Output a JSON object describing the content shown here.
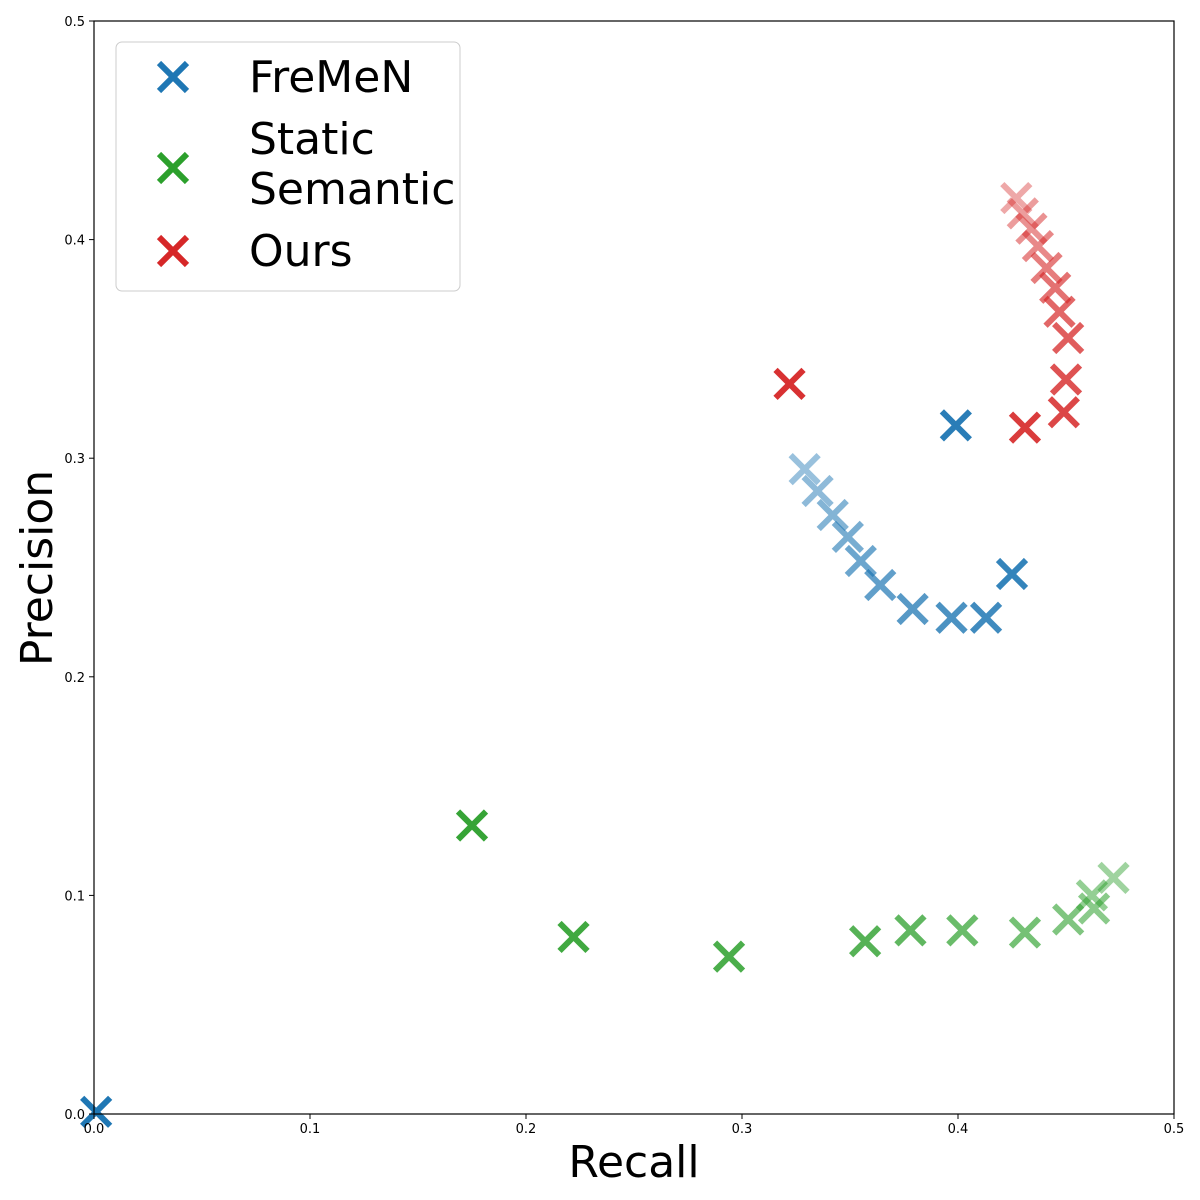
{
  "chart_data": {
    "type": "scatter",
    "title": "",
    "xlabel": "Recall",
    "ylabel": "Precision",
    "xlim": [
      0,
      0.5
    ],
    "ylim": [
      0,
      0.5
    ],
    "xticks": [
      "0.0",
      "0.1",
      "0.2",
      "0.3",
      "0.4",
      "0.5"
    ],
    "yticks": [
      "0.0",
      "0.1",
      "0.2",
      "0.3",
      "0.4",
      "0.5"
    ],
    "grid": false,
    "legend_position": "top-left",
    "marker": "x",
    "series": [
      {
        "name": "FreMeN",
        "color": "#1f77b4",
        "points": [
          {
            "x": 0.001,
            "y": 0.001,
            "alpha": 1.0
          },
          {
            "x": 0.399,
            "y": 0.315,
            "alpha": 0.95
          },
          {
            "x": 0.425,
            "y": 0.247,
            "alpha": 0.9
          },
          {
            "x": 0.413,
            "y": 0.227,
            "alpha": 0.85
          },
          {
            "x": 0.397,
            "y": 0.227,
            "alpha": 0.8
          },
          {
            "x": 0.379,
            "y": 0.231,
            "alpha": 0.75
          },
          {
            "x": 0.364,
            "y": 0.242,
            "alpha": 0.7
          },
          {
            "x": 0.355,
            "y": 0.253,
            "alpha": 0.65
          },
          {
            "x": 0.349,
            "y": 0.264,
            "alpha": 0.6
          },
          {
            "x": 0.342,
            "y": 0.274,
            "alpha": 0.55
          },
          {
            "x": 0.335,
            "y": 0.285,
            "alpha": 0.5
          },
          {
            "x": 0.329,
            "y": 0.295,
            "alpha": 0.45
          }
        ]
      },
      {
        "name": "Static\nSemantic",
        "color": "#2ca02c",
        "points": [
          {
            "x": 0.175,
            "y": 0.132,
            "alpha": 0.95
          },
          {
            "x": 0.222,
            "y": 0.081,
            "alpha": 0.9
          },
          {
            "x": 0.294,
            "y": 0.072,
            "alpha": 0.85
          },
          {
            "x": 0.357,
            "y": 0.079,
            "alpha": 0.8
          },
          {
            "x": 0.378,
            "y": 0.084,
            "alpha": 0.75
          },
          {
            "x": 0.402,
            "y": 0.084,
            "alpha": 0.7
          },
          {
            "x": 0.431,
            "y": 0.083,
            "alpha": 0.65
          },
          {
            "x": 0.451,
            "y": 0.089,
            "alpha": 0.6
          },
          {
            "x": 0.463,
            "y": 0.094,
            "alpha": 0.55
          },
          {
            "x": 0.462,
            "y": 0.1,
            "alpha": 0.5
          },
          {
            "x": 0.472,
            "y": 0.108,
            "alpha": 0.45
          }
        ]
      },
      {
        "name": "Ours",
        "color": "#d62728",
        "points": [
          {
            "x": 0.322,
            "y": 0.334,
            "alpha": 0.95
          },
          {
            "x": 0.431,
            "y": 0.314,
            "alpha": 0.9
          },
          {
            "x": 0.449,
            "y": 0.321,
            "alpha": 0.85
          },
          {
            "x": 0.45,
            "y": 0.336,
            "alpha": 0.8
          },
          {
            "x": 0.451,
            "y": 0.355,
            "alpha": 0.75
          },
          {
            "x": 0.447,
            "y": 0.367,
            "alpha": 0.7
          },
          {
            "x": 0.445,
            "y": 0.378,
            "alpha": 0.65
          },
          {
            "x": 0.441,
            "y": 0.387,
            "alpha": 0.6
          },
          {
            "x": 0.437,
            "y": 0.397,
            "alpha": 0.55
          },
          {
            "x": 0.434,
            "y": 0.405,
            "alpha": 0.5
          },
          {
            "x": 0.43,
            "y": 0.412,
            "alpha": 0.45
          },
          {
            "x": 0.427,
            "y": 0.419,
            "alpha": 0.4
          }
        ]
      }
    ]
  }
}
